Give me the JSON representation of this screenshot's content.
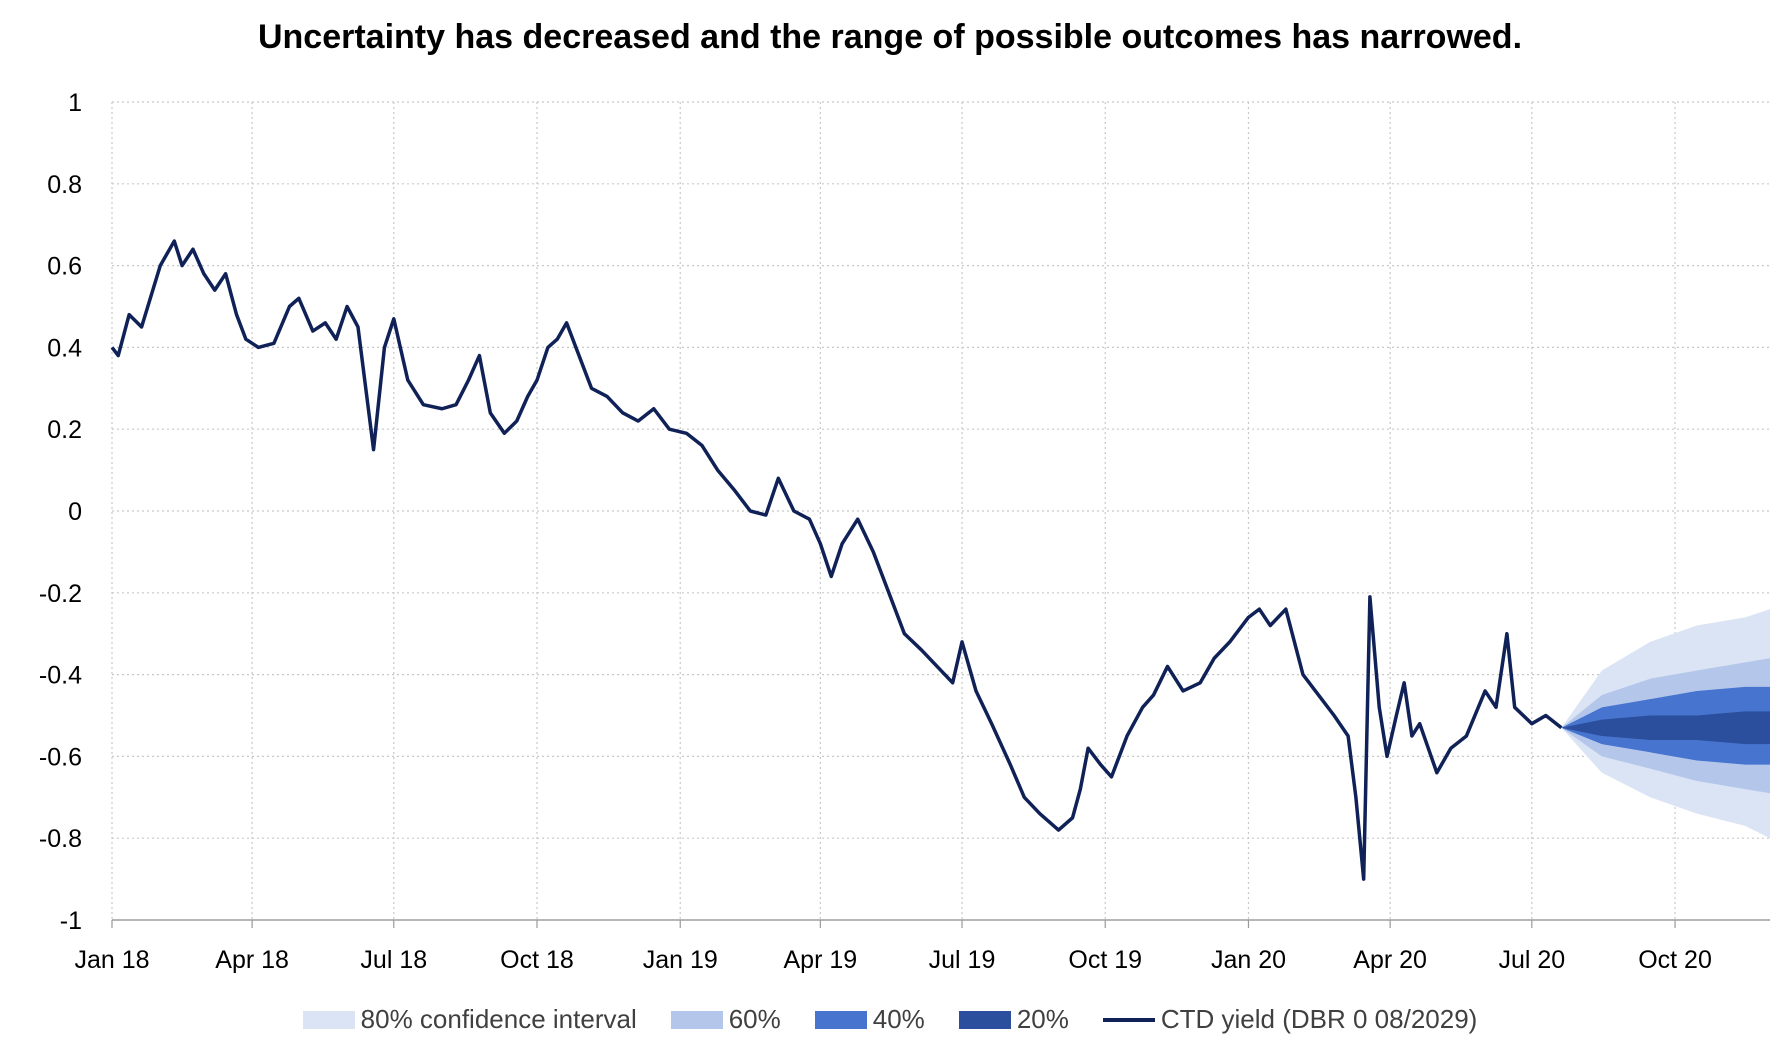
{
  "chart_data": {
    "type": "line",
    "title": "Uncertainty has decreased and the range of possible outcomes has narrowed.",
    "xlabel": "",
    "ylabel": "",
    "ylim": [
      -1,
      1
    ],
    "yticks": [
      "1",
      "0.8",
      "0.6",
      "0.4",
      "0.2",
      "0",
      "-0.2",
      "-0.4",
      "-0.6",
      "-0.8",
      "-1"
    ],
    "x_tick_labels": [
      "Jan 18",
      "Apr 18",
      "Jul 18",
      "Oct 18",
      "Jan 19",
      "Apr 19",
      "Jul 19",
      "Oct 19",
      "Jan 20",
      "Apr 20",
      "Jul 20",
      "Oct 20"
    ],
    "xlim": [
      "2018-01-01",
      "2020-12-01"
    ],
    "grid": true,
    "legend_position": "bottom",
    "colors": {
      "band80": "#dbe4f5",
      "band60": "#b4c7ea",
      "band40": "#4674cf",
      "band20": "#2b4f9c",
      "line": "#0f2157"
    },
    "series": [
      {
        "name": "CTD yield (DBR 0 08/2029)",
        "kind": "line",
        "x": [
          "2018-01-01",
          "2018-01-05",
          "2018-01-12",
          "2018-01-20",
          "2018-02-01",
          "2018-02-10",
          "2018-02-15",
          "2018-02-22",
          "2018-03-01",
          "2018-03-08",
          "2018-03-15",
          "2018-03-22",
          "2018-03-28",
          "2018-04-05",
          "2018-04-15",
          "2018-04-25",
          "2018-05-01",
          "2018-05-10",
          "2018-05-18",
          "2018-05-25",
          "2018-06-01",
          "2018-06-08",
          "2018-06-13",
          "2018-06-18",
          "2018-06-25",
          "2018-07-01",
          "2018-07-10",
          "2018-07-20",
          "2018-08-01",
          "2018-08-10",
          "2018-08-18",
          "2018-08-25",
          "2018-09-01",
          "2018-09-10",
          "2018-09-18",
          "2018-09-25",
          "2018-10-01",
          "2018-10-08",
          "2018-10-14",
          "2018-10-20",
          "2018-10-28",
          "2018-11-05",
          "2018-11-15",
          "2018-11-25",
          "2018-12-05",
          "2018-12-15",
          "2018-12-25",
          "2019-01-05",
          "2019-01-15",
          "2019-01-25",
          "2019-02-05",
          "2019-02-15",
          "2019-02-25",
          "2019-03-05",
          "2019-03-15",
          "2019-03-25",
          "2019-04-01",
          "2019-04-08",
          "2019-04-15",
          "2019-04-25",
          "2019-05-05",
          "2019-05-15",
          "2019-05-25",
          "2019-06-05",
          "2019-06-15",
          "2019-06-25",
          "2019-07-01",
          "2019-07-10",
          "2019-07-20",
          "2019-08-01",
          "2019-08-10",
          "2019-08-20",
          "2019-09-01",
          "2019-09-10",
          "2019-09-15",
          "2019-09-20",
          "2019-09-28",
          "2019-10-05",
          "2019-10-15",
          "2019-10-25",
          "2019-11-01",
          "2019-11-10",
          "2019-11-20",
          "2019-12-01",
          "2019-12-10",
          "2019-12-20",
          "2020-01-01",
          "2020-01-08",
          "2020-01-15",
          "2020-01-25",
          "2020-02-05",
          "2020-02-15",
          "2020-02-25",
          "2020-03-05",
          "2020-03-10",
          "2020-03-15",
          "2020-03-19",
          "2020-03-25",
          "2020-03-30",
          "2020-04-05",
          "2020-04-10",
          "2020-04-15",
          "2020-04-20",
          "2020-05-01",
          "2020-05-10",
          "2020-05-20",
          "2020-06-01",
          "2020-06-08",
          "2020-06-15",
          "2020-06-20",
          "2020-07-01",
          "2020-07-10",
          "2020-07-20"
        ],
        "y": [
          0.4,
          0.38,
          0.48,
          0.45,
          0.6,
          0.66,
          0.6,
          0.64,
          0.58,
          0.54,
          0.58,
          0.48,
          0.42,
          0.4,
          0.41,
          0.5,
          0.52,
          0.44,
          0.46,
          0.42,
          0.5,
          0.45,
          0.3,
          0.15,
          0.4,
          0.47,
          0.32,
          0.26,
          0.25,
          0.26,
          0.32,
          0.38,
          0.24,
          0.19,
          0.22,
          0.28,
          0.32,
          0.4,
          0.42,
          0.46,
          0.38,
          0.3,
          0.28,
          0.24,
          0.22,
          0.25,
          0.2,
          0.19,
          0.16,
          0.1,
          0.05,
          0.0,
          -0.01,
          0.08,
          0.0,
          -0.02,
          -0.08,
          -0.16,
          -0.08,
          -0.02,
          -0.1,
          -0.2,
          -0.3,
          -0.34,
          -0.38,
          -0.42,
          -0.32,
          -0.44,
          -0.52,
          -0.62,
          -0.7,
          -0.74,
          -0.78,
          -0.75,
          -0.68,
          -0.58,
          -0.62,
          -0.65,
          -0.55,
          -0.48,
          -0.45,
          -0.38,
          -0.44,
          -0.42,
          -0.36,
          -0.32,
          -0.26,
          -0.24,
          -0.28,
          -0.24,
          -0.4,
          -0.45,
          -0.5,
          -0.55,
          -0.7,
          -0.9,
          -0.21,
          -0.48,
          -0.6,
          -0.5,
          -0.42,
          -0.55,
          -0.52,
          -0.64,
          -0.58,
          -0.55,
          -0.44,
          -0.48,
          -0.3,
          -0.48,
          -0.52,
          -0.5,
          -0.53
        ]
      },
      {
        "name": "80% confidence interval",
        "kind": "band",
        "x": [
          "2020-07-20",
          "2020-08-15",
          "2020-09-15",
          "2020-10-15",
          "2020-11-15",
          "2020-12-01"
        ],
        "low": [
          -0.53,
          -0.64,
          -0.7,
          -0.74,
          -0.77,
          -0.8
        ],
        "high": [
          -0.53,
          -0.39,
          -0.32,
          -0.28,
          -0.26,
          -0.24
        ]
      },
      {
        "name": "60%",
        "kind": "band",
        "x": [
          "2020-07-20",
          "2020-08-15",
          "2020-09-15",
          "2020-10-15",
          "2020-11-15",
          "2020-12-01"
        ],
        "low": [
          -0.53,
          -0.6,
          -0.63,
          -0.66,
          -0.68,
          -0.69
        ],
        "high": [
          -0.53,
          -0.45,
          -0.41,
          -0.39,
          -0.37,
          -0.36
        ]
      },
      {
        "name": "40%",
        "kind": "band",
        "x": [
          "2020-07-20",
          "2020-08-15",
          "2020-09-15",
          "2020-10-15",
          "2020-11-15",
          "2020-12-01"
        ],
        "low": [
          -0.53,
          -0.57,
          -0.59,
          -0.61,
          -0.62,
          -0.62
        ],
        "high": [
          -0.53,
          -0.48,
          -0.46,
          -0.44,
          -0.43,
          -0.43
        ]
      },
      {
        "name": "20%",
        "kind": "band",
        "x": [
          "2020-07-20",
          "2020-08-15",
          "2020-09-15",
          "2020-10-15",
          "2020-11-15",
          "2020-12-01"
        ],
        "low": [
          -0.53,
          -0.55,
          -0.56,
          -0.56,
          -0.57,
          -0.57
        ],
        "high": [
          -0.53,
          -0.51,
          -0.5,
          -0.5,
          -0.49,
          -0.49
        ]
      }
    ]
  },
  "legend": {
    "items": [
      "80% confidence interval",
      "60%",
      "40%",
      "20%",
      "CTD yield (DBR 0 08/2029)"
    ]
  }
}
